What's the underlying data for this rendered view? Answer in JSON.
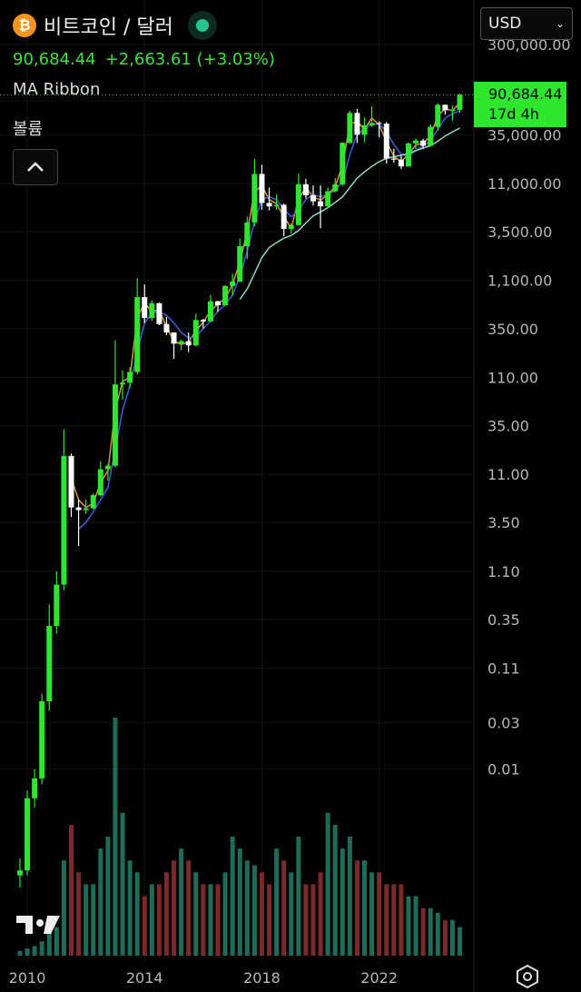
{
  "header": {
    "symbol": "비트코인 / 달러",
    "last": "90,684.44",
    "change": "+2,663.61",
    "change_pct": "(+3.03%)",
    "indicators": [
      "MA Ribbon",
      "볼륨"
    ],
    "currency": "USD",
    "countdown": "17d 4h"
  },
  "chart_data": {
    "type": "candlestick",
    "log_scale": true,
    "grid": true,
    "up_color": "#2ee62e",
    "down_color": "#ffffff",
    "x": [
      2009.75,
      2010,
      2010.25,
      2010.5,
      2010.75,
      2011,
      2011.25,
      2011.5,
      2011.75,
      2012,
      2012.25,
      2012.5,
      2012.75,
      2013,
      2013.25,
      2013.5,
      2013.75,
      2014,
      2014.25,
      2014.5,
      2014.75,
      2015,
      2015.25,
      2015.5,
      2015.75,
      2016,
      2016.25,
      2016.5,
      2016.75,
      2017,
      2017.25,
      2017.5,
      2017.75,
      2018,
      2018.25,
      2018.5,
      2018.75,
      2019,
      2019.25,
      2019.5,
      2019.75,
      2020,
      2020.25,
      2020.5,
      2020.75,
      2021,
      2021.25,
      2021.5,
      2021.75,
      2022,
      2022.25,
      2022.5,
      2022.75,
      2023,
      2023.25,
      2023.5,
      2023.75,
      2024,
      2024.25,
      2024.5,
      2024.75
    ],
    "open": [
      0.0008,
      0.0009,
      0.005,
      0.008,
      0.05,
      0.3,
      0.8,
      17,
      5,
      4.7,
      4.9,
      6.7,
      12.4,
      13.5,
      93,
      97,
      125,
      740,
      450,
      640,
      390,
      320,
      245,
      260,
      235,
      430,
      415,
      670,
      610,
      965,
      1070,
      2480,
      4360,
      13800,
      6930,
      6390,
      6620,
      3740,
      4100,
      10800,
      8300,
      7200,
      6400,
      9140,
      10780,
      28950,
      58800,
      35000,
      43800,
      46300,
      45500,
      19900,
      19400,
      16500,
      28500,
      30500,
      27000,
      42300,
      71300,
      62700,
      63300
    ],
    "high": [
      0.0012,
      0.006,
      0.01,
      0.06,
      0.5,
      1.1,
      32,
      18,
      6,
      6,
      7,
      15,
      14,
      266,
      130,
      140,
      1160,
      1000,
      680,
      650,
      460,
      320,
      270,
      320,
      500,
      440,
      780,
      680,
      980,
      1290,
      2980,
      5000,
      19700,
      17200,
      9990,
      8500,
      6800,
      4250,
      13900,
      12300,
      10500,
      10500,
      10000,
      12500,
      29300,
      61800,
      64850,
      52900,
      69000,
      48200,
      47400,
      25200,
      21500,
      29200,
      31800,
      31800,
      44700,
      73800,
      72000,
      70000,
      93000
    ],
    "low": [
      0.0006,
      0.0008,
      0.004,
      0.007,
      0.04,
      0.25,
      0.7,
      4,
      2,
      4.3,
      4.8,
      6.5,
      9.5,
      13,
      65,
      85,
      118,
      400,
      420,
      380,
      300,
      170,
      210,
      200,
      230,
      350,
      410,
      520,
      600,
      760,
      1070,
      1830,
      4000,
      5900,
      5800,
      5880,
      3150,
      3350,
      4070,
      7700,
      6500,
      3800,
      6200,
      8900,
      10400,
      28000,
      28800,
      29300,
      42000,
      32900,
      17600,
      18100,
      15500,
      16500,
      24800,
      24900,
      26500,
      38500,
      56500,
      49000,
      58900
    ],
    "close": [
      0.0009,
      0.005,
      0.008,
      0.05,
      0.3,
      0.8,
      17,
      5,
      4.7,
      4.9,
      6.7,
      12.4,
      13.5,
      93,
      97,
      125,
      740,
      450,
      640,
      390,
      320,
      245,
      260,
      235,
      430,
      415,
      670,
      610,
      965,
      1070,
      2480,
      4360,
      13800,
      6930,
      6390,
      6620,
      3740,
      4100,
      10800,
      8300,
      7200,
      6400,
      9140,
      10780,
      28950,
      58800,
      35000,
      43800,
      46300,
      45500,
      19900,
      19400,
      16500,
      28500,
      30500,
      27000,
      42300,
      71300,
      62700,
      63300,
      90684.44
    ],
    "ma_ribbon": {
      "label": "MA Ribbon",
      "lines": [
        {
          "color": "#e0903a",
          "values": [
            null,
            null,
            null,
            null,
            null,
            null,
            null,
            10,
            6,
            5,
            5.5,
            9,
            12,
            50,
            100,
            110,
            450,
            650,
            520,
            550,
            360,
            260,
            240,
            255,
            330,
            410,
            530,
            630,
            720,
            1000,
            1700,
            3500,
            9000,
            10500,
            7500,
            6800,
            5000,
            3800,
            7500,
            10000,
            8000,
            7400,
            8500,
            10200,
            17000,
            45000,
            48000,
            40000,
            52000,
            44000,
            30000,
            21000,
            18500,
            22000,
            27500,
            28500,
            34000,
            55000,
            65000,
            62000,
            75000
          ]
        },
        {
          "color": "#3f5fd8",
          "values": [
            null,
            null,
            null,
            null,
            null,
            null,
            null,
            null,
            3,
            3.5,
            4.5,
            6,
            8,
            20,
            50,
            90,
            200,
            400,
            500,
            520,
            480,
            400,
            320,
            280,
            290,
            350,
            420,
            530,
            620,
            780,
            1200,
            2200,
            4500,
            7500,
            8000,
            7500,
            6000,
            5000,
            5800,
            7500,
            8500,
            8000,
            8500,
            9300,
            11500,
            22000,
            35000,
            40000,
            45000,
            45000,
            38000,
            28000,
            22000,
            21000,
            24000,
            27000,
            30000,
            40000,
            52000,
            58000,
            62000
          ]
        },
        {
          "color": "#8fd8c8",
          "values": [
            null,
            null,
            null,
            null,
            null,
            null,
            null,
            null,
            null,
            null,
            null,
            null,
            null,
            null,
            null,
            null,
            null,
            null,
            null,
            null,
            null,
            null,
            null,
            null,
            null,
            null,
            null,
            null,
            null,
            null,
            700,
            900,
            1300,
            1900,
            2400,
            2700,
            3000,
            3200,
            3600,
            4300,
            5100,
            5600,
            6200,
            7000,
            8000,
            10000,
            12500,
            14500,
            16500,
            18500,
            20000,
            20800,
            21500,
            22500,
            24000,
            25500,
            27000,
            30000,
            34000,
            37500,
            41000
          ]
        }
      ]
    },
    "volume": {
      "label": "볼륨",
      "ylim": [
        0,
        100
      ],
      "up_color": "#1f6b5a",
      "down_color": "#7a2a2a",
      "values": [
        2,
        3,
        4,
        6,
        10,
        12,
        40,
        55,
        35,
        30,
        30,
        45,
        50,
        100,
        60,
        40,
        35,
        25,
        30,
        30,
        35,
        40,
        45,
        40,
        35,
        30,
        30,
        30,
        35,
        50,
        45,
        40,
        38,
        35,
        30,
        45,
        40,
        35,
        50,
        30,
        30,
        35,
        60,
        55,
        45,
        50,
        40,
        40,
        35,
        35,
        30,
        30,
        30,
        25,
        25,
        20,
        20,
        18,
        15,
        15,
        12
      ]
    },
    "last_price": {
      "value": 90684.44,
      "label": "90,684.44"
    },
    "xlim": [
      2009.07,
      2025.23
    ],
    "xticks": [
      2010,
      2014,
      2018,
      2022
    ],
    "ylim": [
      0.0001,
      860000
    ],
    "yticks": [
      {
        "value": 300000,
        "label": "300,000.00"
      },
      {
        "value": 35000,
        "label": "35,000.00"
      },
      {
        "value": 11000,
        "label": "11,000.00"
      },
      {
        "value": 3500,
        "label": "3,500.00"
      },
      {
        "value": 1100,
        "label": "1,100.00"
      },
      {
        "value": 350,
        "label": "350.00"
      },
      {
        "value": 110,
        "label": "110.00"
      },
      {
        "value": 35,
        "label": "35.00"
      },
      {
        "value": 11,
        "label": "11.00"
      },
      {
        "value": 3.5,
        "label": "3.50"
      },
      {
        "value": 1.1,
        "label": "1.10"
      },
      {
        "value": 0.35,
        "label": "0.35"
      },
      {
        "value": 0.11,
        "label": "0.11"
      },
      {
        "value": 0.03,
        "label": "0.03"
      },
      {
        "value": 0.01,
        "label": "0.01"
      }
    ]
  }
}
